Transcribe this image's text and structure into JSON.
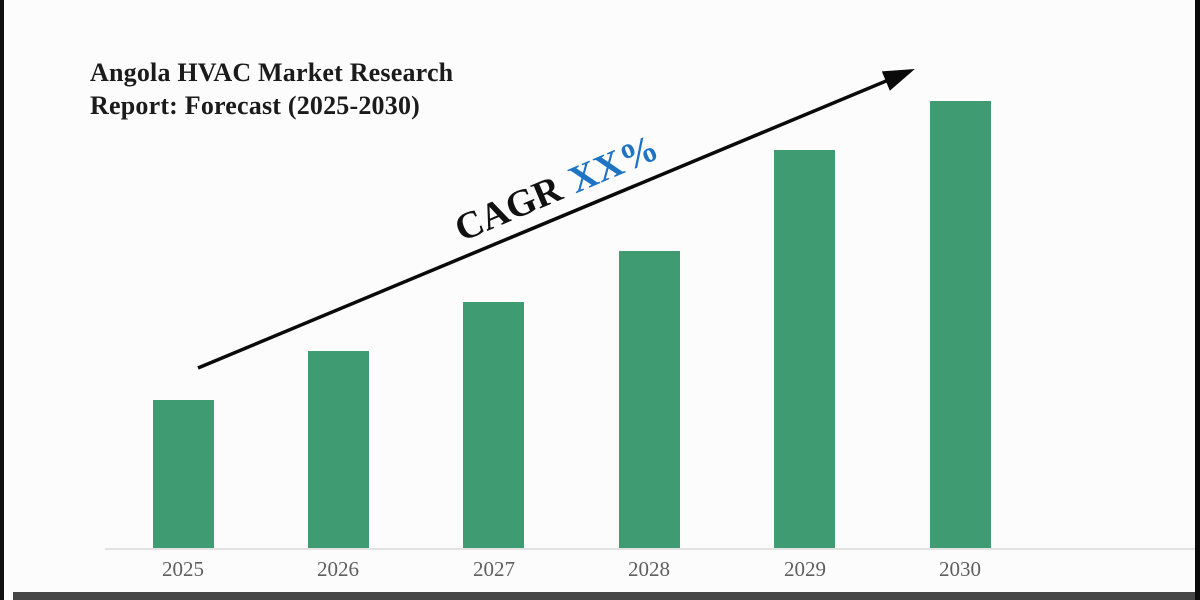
{
  "page": {
    "background_color": "#fcfcfc",
    "frame": {
      "left_bar_color": "#101010",
      "right_bar_color": "#0b0b0b",
      "bottom_bar_color": "#464646"
    }
  },
  "title": {
    "line1": "Angola HVAC Market Research",
    "line2": "Report: Forecast (2025-2030)"
  },
  "annotation": {
    "cagr_label": "CAGR",
    "cagr_value": "XX%",
    "cagr_value_color": "#1e73c4",
    "arrow_color": "#0a0a0a"
  },
  "chart_data": {
    "type": "bar",
    "title": "Angola HVAC Market Research Report: Forecast (2025-2030)",
    "categories": [
      "2025",
      "2026",
      "2027",
      "2028",
      "2029",
      "2030"
    ],
    "values_relative": [
      33,
      44,
      55,
      66.5,
      89,
      100
    ],
    "value_units": "relative index (no y-axis or data labels shown; 2030 = 100)",
    "bar_color": "#3f9b72",
    "xlabel": "",
    "ylabel": "",
    "ylim": [
      0,
      100
    ],
    "y_axis_visible": false,
    "gridlines": false,
    "legend": false,
    "x_tick_color": "#5f5f5f",
    "axis_line_color": "#e2e2e2",
    "annotations": [
      "Upward diagonal trend arrow from 2025 bar to above 2030 bar",
      "Rotated label: CAGR XX%"
    ]
  }
}
